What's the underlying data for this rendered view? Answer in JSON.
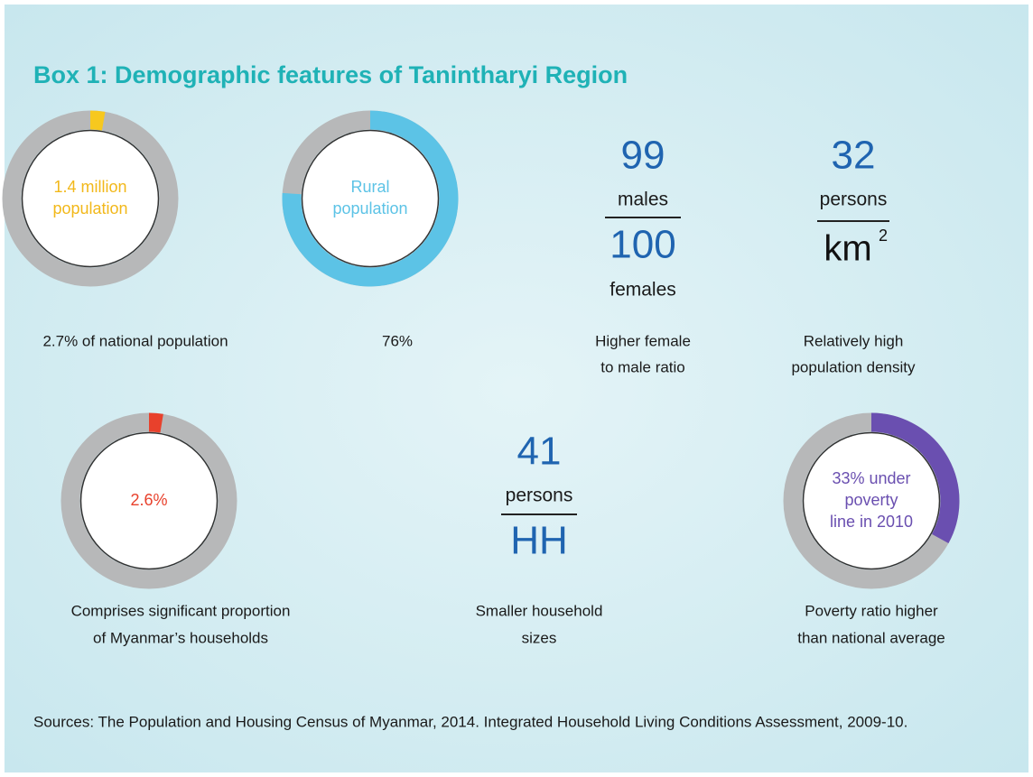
{
  "title": "Box 1: Demographic features of Tanintharyi Region",
  "donuts": [
    {
      "center": [
        "1.4 million",
        "population"
      ],
      "percent": 2.7,
      "color": "#f7c81e",
      "text_color": "#f2b81a",
      "caption": [
        "2.7%  of national population"
      ]
    },
    {
      "center": [
        "Rural",
        "population"
      ],
      "percent": 76,
      "color": "#5cc3e6",
      "text_color": "#5cc3e6",
      "caption": [
        "76%"
      ]
    },
    {
      "center": [
        "2.6%"
      ],
      "percent": 2.6,
      "color": "#e8412c",
      "text_color": "#e8412c",
      "caption": [
        "Comprises significant proportion",
        "of Myanmar’s households"
      ]
    },
    {
      "center": [
        "33% under",
        "poverty",
        "line in 2010"
      ],
      "percent": 33,
      "color": "#6a4fb0",
      "text_color": "#6a4fb0",
      "caption": [
        "Poverty ratio higher",
        "than national average"
      ]
    }
  ],
  "ratios": [
    {
      "top_number": "99",
      "top_unit": "males",
      "bottom_number": "100",
      "bottom_unit": "females",
      "caption": [
        "Higher female",
        "to male ratio"
      ]
    },
    {
      "top_number": "32",
      "top_unit": "persons",
      "bottom_unit": "km",
      "bottom_exponent": "2",
      "caption": [
        "Relatively high",
        "population density"
      ]
    },
    {
      "top_number": "41",
      "top_unit": "persons",
      "bottom_unit": "HH",
      "caption": [
        "Smaller household",
        "sizes"
      ]
    }
  ],
  "sources": "Sources: The Population and Housing Census of Myanmar, 2014. Integrated Household Living Conditions Assessment, 2009-10."
}
